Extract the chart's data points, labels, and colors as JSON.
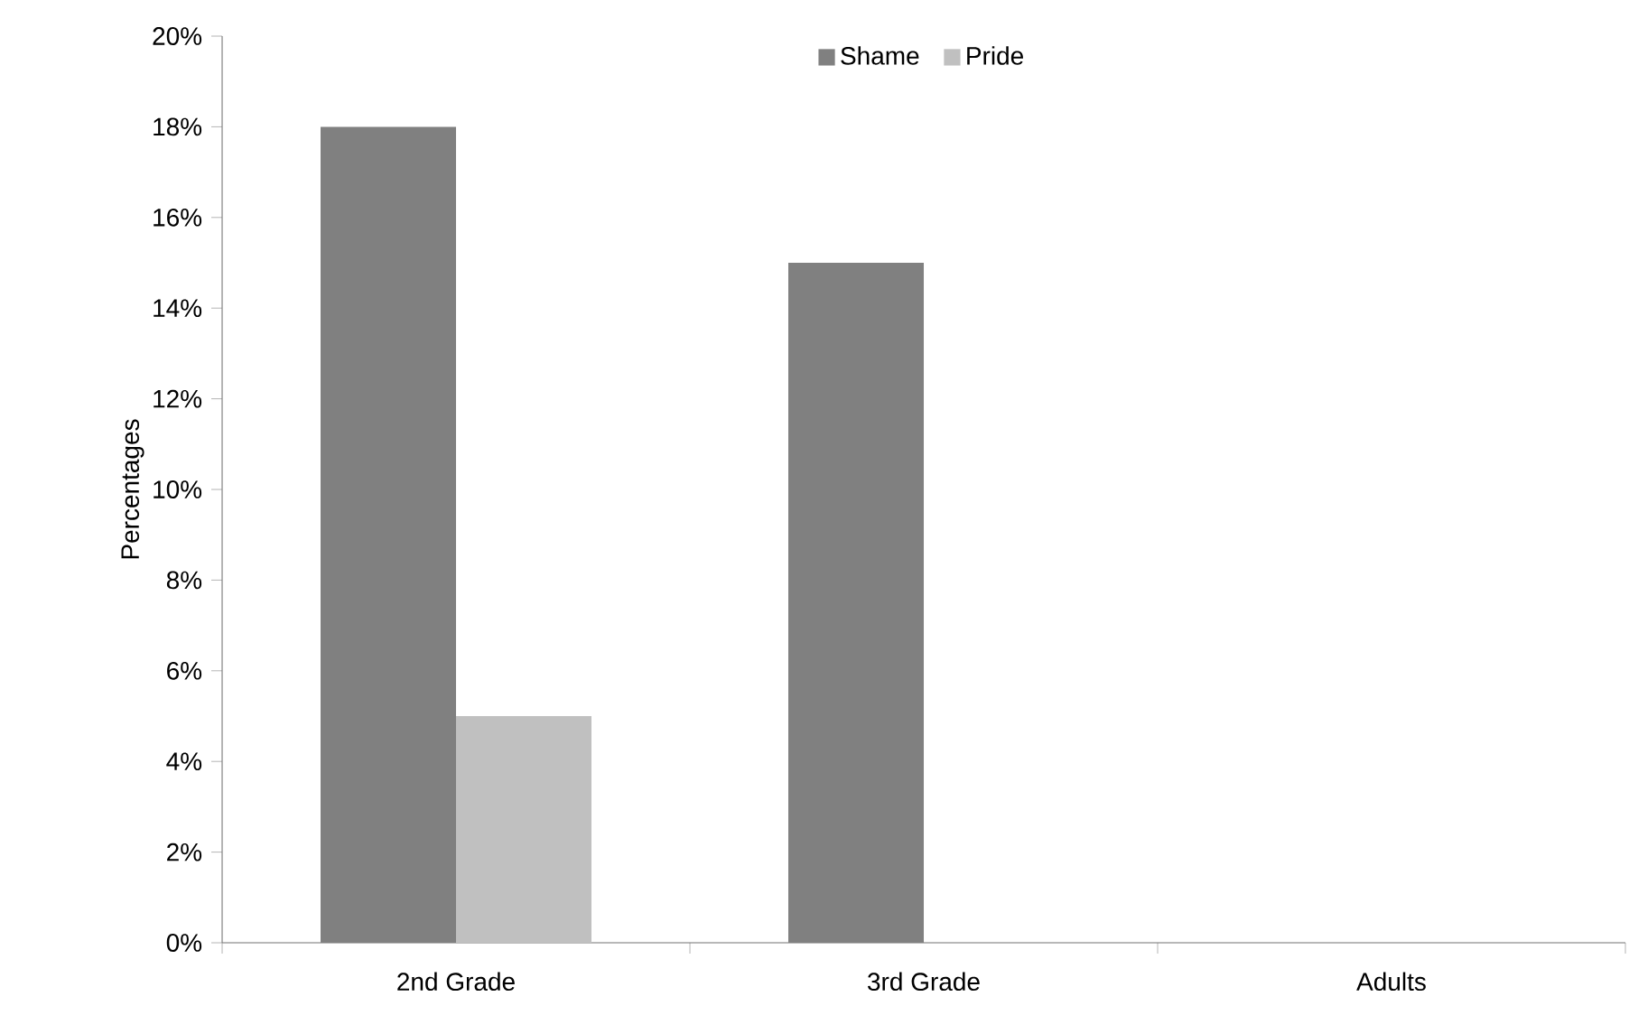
{
  "chart_data": {
    "type": "bar",
    "ylabel": "Percentages",
    "categories": [
      "2nd Grade",
      "3rd Grade",
      "Adults"
    ],
    "series": [
      {
        "name": "Shame",
        "color": "#808080",
        "values": [
          18,
          15,
          0
        ]
      },
      {
        "name": "Pride",
        "color": "#c0c0c0",
        "values": [
          5,
          0,
          0
        ]
      }
    ],
    "ylim": [
      0,
      20
    ],
    "yticks": [
      {
        "value": 0,
        "label": "0%"
      },
      {
        "value": 2,
        "label": "2%"
      },
      {
        "value": 4,
        "label": "4%"
      },
      {
        "value": 6,
        "label": "6%"
      },
      {
        "value": 8,
        "label": "8%"
      },
      {
        "value": 10,
        "label": "10%"
      },
      {
        "value": 12,
        "label": "12%"
      },
      {
        "value": 14,
        "label": "14%"
      },
      {
        "value": 16,
        "label": "16%"
      },
      {
        "value": 18,
        "label": "18%"
      },
      {
        "value": 20,
        "label": "20%"
      }
    ],
    "grid": false,
    "legend": "top"
  }
}
